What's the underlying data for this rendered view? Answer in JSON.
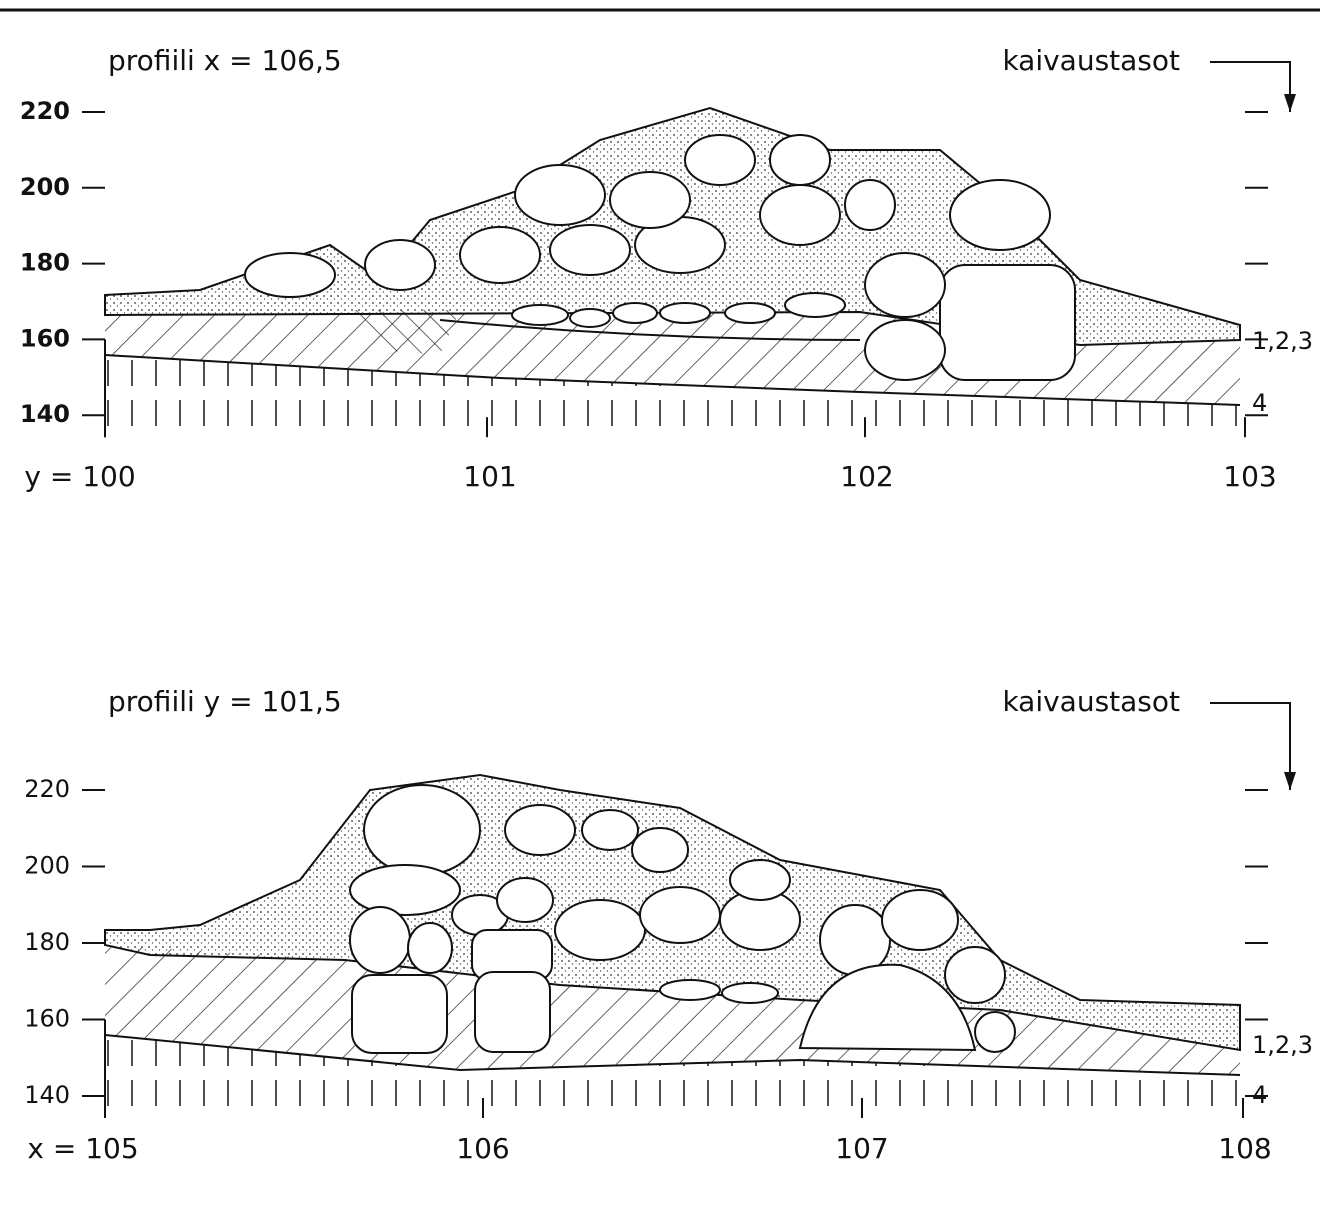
{
  "profiles": [
    {
      "title": "profiili x = 106,5",
      "legend": "kaivaustasot",
      "y_labels": [
        "220",
        "200",
        "180",
        "160",
        "140"
      ],
      "x_labels": [
        "y = 100",
        "101",
        "102",
        "103"
      ],
      "level_labels": [
        "1,2,3",
        "4"
      ]
    },
    {
      "title": "profiili y = 101,5",
      "legend": "kaivaustasot",
      "y_labels": [
        "220",
        "200",
        "180",
        "160",
        "140"
      ],
      "x_labels": [
        "x = 105",
        "106",
        "107",
        "108"
      ],
      "level_labels": [
        "1,2,3",
        "4"
      ]
    }
  ]
}
